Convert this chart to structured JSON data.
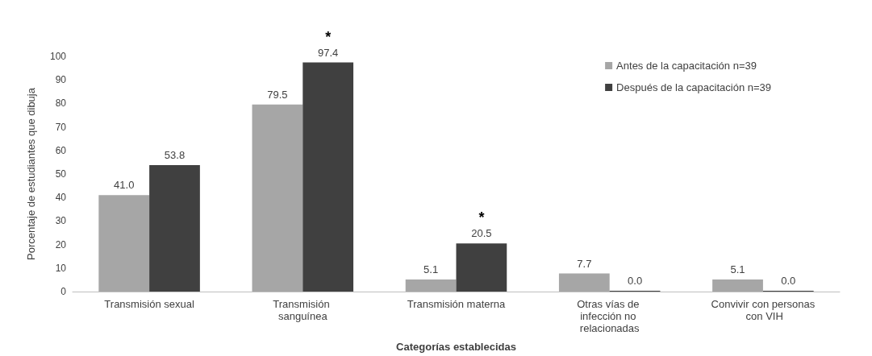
{
  "chart_data": {
    "type": "bar",
    "xlabel": "Categorías establecidas",
    "ylabel": "Porcentaje de estudiantes que dibuja",
    "categories": [
      "Transmisión sexual",
      "Transmisión sanguínea",
      "Transmisión materna",
      "Otras vías de infección no relacionadas",
      "Convivir con personas con VIH"
    ],
    "series": [
      {
        "name": "Antes de la capacitación n=39",
        "color": "#a6a6a6",
        "values": [
          41.0,
          79.5,
          5.1,
          7.7,
          5.1
        ],
        "value_labels": [
          "41.0",
          "79.5",
          "5.1",
          "7.7",
          "5.1"
        ]
      },
      {
        "name": "Después de la capacitación n=39",
        "color": "#404040",
        "values": [
          53.8,
          97.4,
          20.5,
          0.0,
          0.0
        ],
        "value_labels": [
          "53.8",
          "97.4",
          "20.5",
          "0.0",
          "0.0"
        ]
      }
    ],
    "ylim": [
      0,
      100
    ],
    "yticks": [
      0,
      10,
      20,
      30,
      40,
      50,
      60,
      70,
      80,
      90,
      100
    ],
    "grid": false,
    "legend": "top right",
    "annotations": [
      {
        "text": "*",
        "x": "Transmisión sanguínea",
        "y": 97.4
      },
      {
        "text": "*",
        "x": "Transmisión materna",
        "y": 20.5
      }
    ]
  }
}
